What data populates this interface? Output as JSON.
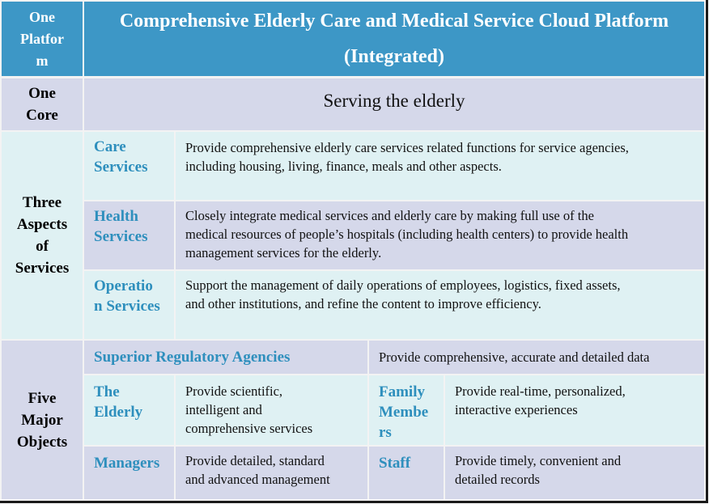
{
  "platform": {
    "label": "One Platform",
    "label_lines": [
      "One",
      "Platfor",
      "m"
    ],
    "title_lines": [
      "Comprehensive Elderly Care and Medical Service Cloud Platform",
      "(Integrated)"
    ]
  },
  "core": {
    "label_lines": [
      "One",
      "Core"
    ],
    "value": "Serving the elderly"
  },
  "services": {
    "label_lines": [
      "Three",
      "Aspects",
      "of",
      "Services"
    ],
    "items": [
      {
        "name_lines": [
          "Care",
          "Services"
        ],
        "desc_lines": [
          "Provide comprehensive elderly care services related functions for service agencies,",
          "including housing, living, finance, meals and other aspects."
        ]
      },
      {
        "name_lines": [
          "Health",
          "Services"
        ],
        "desc_lines": [
          "Closely integrate medical services and elderly care by making full use of the",
          "medical resources of people’s hospitals (including health centers) to provide health",
          "management services for the elderly."
        ]
      },
      {
        "name_lines": [
          "Operatio",
          "n Services"
        ],
        "desc_lines": [
          "Support the management of daily operations of employees, logistics, fixed assets,",
          "and other institutions, and refine the content to improve efficiency."
        ]
      }
    ]
  },
  "objects": {
    "label_lines": [
      "Five",
      "Major",
      "Objects"
    ],
    "regulatory": {
      "name": "Superior Regulatory Agencies",
      "desc": "Provide comprehensive, accurate and detailed data"
    },
    "elderly": {
      "name_lines": [
        "The",
        "Elderly"
      ],
      "desc_lines": [
        "Provide scientific,",
        "intelligent and",
        "comprehensive services"
      ]
    },
    "family": {
      "name_lines": [
        "Family",
        "Membe",
        "rs"
      ],
      "desc_lines": [
        "Provide real-time, personalized,",
        "interactive experiences"
      ]
    },
    "managers": {
      "name": "Managers",
      "desc_lines": [
        "Provide detailed, standard",
        "and advanced management"
      ]
    },
    "staff": {
      "name": "Staff",
      "desc_lines": [
        "Provide timely, convenient and",
        "detailed records"
      ]
    }
  },
  "colors": {
    "header_bg": "#3d97c6",
    "light_bg": "#dff1f3",
    "lavender_bg": "#d5d8ea",
    "category_text": "#2e8fbd"
  }
}
